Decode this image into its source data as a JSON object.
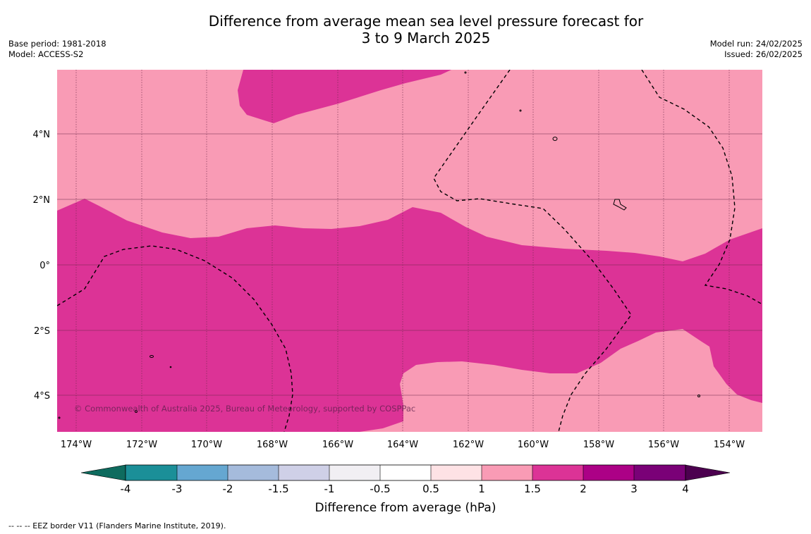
{
  "title": {
    "line1": "Difference from average mean sea level pressure forecast for",
    "line2": "3 to 9 March 2025"
  },
  "meta_left": {
    "base_period": "Base period: 1981-2018",
    "model": "Model: ACCESS-S2"
  },
  "meta_right": {
    "model_run": "Model run: 24/02/2025",
    "issued": "Issued: 26/02/2025"
  },
  "map": {
    "lon_labels": [
      "174°W",
      "172°W",
      "170°W",
      "168°W",
      "166°W",
      "164°W",
      "162°W",
      "160°W",
      "158°W",
      "156°W",
      "154°W"
    ],
    "lat_labels": [
      "4°N",
      "2°N",
      "0°",
      "2°S",
      "4°S"
    ],
    "copyright": "© Commonwealth of Australia 2025, Bureau of Meteorology, supported by COSPPac",
    "colors": {
      "band_1_1_5": "#f99bb5",
      "band_1_5_2": "#dc3396",
      "grid": "#6b2a4a",
      "border": "#000000"
    }
  },
  "colorbar": {
    "ticks": [
      "-4",
      "-3",
      "-2",
      "-1.5",
      "-1",
      "-0.5",
      "0.5",
      "1",
      "1.5",
      "2",
      "3",
      "4"
    ],
    "label": "Difference from average (hPa)",
    "colors": [
      "#0e6b5e",
      "#1b8f98",
      "#65a7d1",
      "#a5bbdc",
      "#cfd0e7",
      "#f1eff3",
      "#ffffff",
      "#fee2e5",
      "#f99bb5",
      "#dc3396",
      "#ac0186",
      "#7a0177",
      "#4c004f"
    ]
  },
  "footer": "--  --  -- EEZ border V11 (Flanders Marine Institute, 2019)."
}
